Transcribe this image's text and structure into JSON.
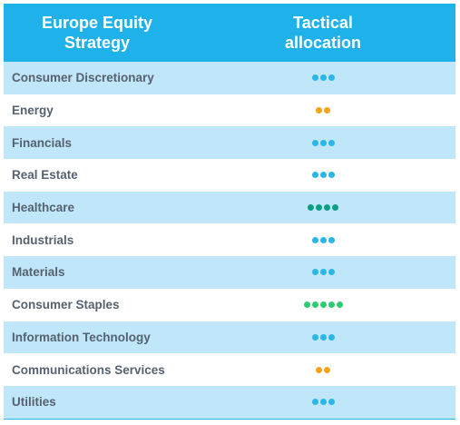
{
  "header": {
    "sector_title": "Europe Equity\nStrategy",
    "allocation_title": "Tactical\nallocation"
  },
  "colors": {
    "header_bg": "#1fb1ea",
    "row_shade": "#bfe6f9",
    "blue_dot": "#29b6e8",
    "orange_dot": "#f5a31a",
    "teal_dot": "#0a9e84",
    "green_dot": "#2ecc71"
  },
  "rows": [
    {
      "sector": "Consumer Discretionary",
      "dots": 3,
      "dot_color": "blue",
      "shaded": true
    },
    {
      "sector": "Energy",
      "dots": 2,
      "dot_color": "orange",
      "shaded": false
    },
    {
      "sector": "Financials",
      "dots": 3,
      "dot_color": "blue",
      "shaded": true
    },
    {
      "sector": "Real Estate",
      "dots": 3,
      "dot_color": "blue",
      "shaded": false
    },
    {
      "sector": "Healthcare",
      "dots": 4,
      "dot_color": "teal",
      "shaded": true
    },
    {
      "sector": "Industrials",
      "dots": 3,
      "dot_color": "blue",
      "shaded": false
    },
    {
      "sector": "Materials",
      "dots": 3,
      "dot_color": "blue",
      "shaded": true
    },
    {
      "sector": "Consumer Staples",
      "dots": 5,
      "dot_color": "green",
      "shaded": false
    },
    {
      "sector": "Information Technology",
      "dots": 3,
      "dot_color": "blue",
      "shaded": true
    },
    {
      "sector": "Communications Services",
      "dots": 2,
      "dot_color": "orange",
      "shaded": false
    },
    {
      "sector": "Utilities",
      "dots": 3,
      "dot_color": "blue",
      "shaded": true
    }
  ]
}
